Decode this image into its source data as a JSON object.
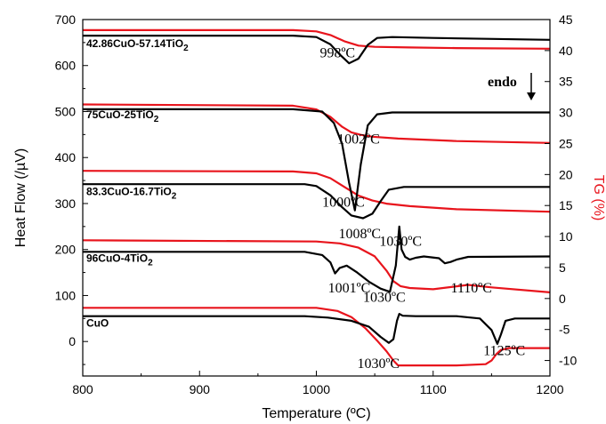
{
  "chart_data": {
    "type": "line",
    "title": "",
    "xlabel": "Temperature (ºC)",
    "ylabel_left": "Heat Flow (/µV)",
    "ylabel_right": "TG (%)",
    "xlim": [
      800,
      1200
    ],
    "ylim_left": [
      -75,
      700
    ],
    "ylim_right": [
      -12.5,
      45
    ],
    "x_ticks": [
      800,
      900,
      1000,
      1100,
      1200
    ],
    "y_left_ticks": [
      0,
      100,
      200,
      300,
      400,
      500,
      600,
      700
    ],
    "y_right_ticks": [
      -10,
      -5,
      0,
      5,
      10,
      15,
      20,
      25,
      30,
      35,
      40,
      45
    ],
    "grid": false,
    "colors": {
      "heat_flow": "#000000",
      "tg": "#e8141c"
    },
    "series_labels": [
      {
        "main": "42.86CuO-57.14TiO",
        "sub": "2",
        "x": 803,
        "y": 640
      },
      {
        "main": "75CuO-25TiO",
        "sub": "2",
        "x": 803,
        "y": 485
      },
      {
        "main": "83.3CuO-16.7TiO",
        "sub": "2",
        "x": 803,
        "y": 318
      },
      {
        "main": "96CuO-4TiO",
        "sub": "2",
        "x": 803,
        "y": 173
      },
      {
        "main": "CuO",
        "sub": "",
        "x": 803,
        "y": 32
      }
    ],
    "endo_label": "endo",
    "annotations": [
      {
        "text": "998ºC",
        "x": 1003,
        "y": 618
      },
      {
        "text": "1002ºC",
        "x": 1018,
        "y": 430
      },
      {
        "text": "1000ºC",
        "x": 1005,
        "y": 293
      },
      {
        "text": "1008ºC",
        "x": 1019,
        "y": 225
      },
      {
        "text": "1030ºC",
        "x": 1054,
        "y": 208
      },
      {
        "text": "1001ºC",
        "x": 1010,
        "y": 107
      },
      {
        "text": "1030ºC",
        "x": 1040,
        "y": 86
      },
      {
        "text": "1110ºC",
        "x": 1115,
        "y": 107
      },
      {
        "text": "1030ºC",
        "x": 1035,
        "y": -58
      },
      {
        "text": "1125ºC",
        "x": 1143,
        "y": -30
      }
    ],
    "heat_flow_series": [
      {
        "x": [
          800,
          980,
          1000,
          1012,
          1020,
          1028,
          1036,
          1044,
          1052,
          1065,
          1100,
          1200
        ],
        "y": [
          665,
          665,
          662,
          646,
          624,
          605,
          615,
          645,
          660,
          662,
          660,
          656
        ]
      },
      {
        "x": [
          800,
          980,
          1005,
          1015,
          1022,
          1028,
          1033,
          1038,
          1044,
          1052,
          1065,
          1100,
          1200
        ],
        "y": [
          505,
          505,
          500,
          475,
          430,
          345,
          285,
          385,
          470,
          494,
          498,
          498,
          498
        ]
      },
      {
        "x": [
          800,
          990,
          1000,
          1012,
          1022,
          1030,
          1040,
          1048,
          1055,
          1062,
          1075,
          1100,
          1200
        ],
        "y": [
          342,
          342,
          338,
          318,
          292,
          274,
          268,
          278,
          305,
          330,
          336,
          336,
          336
        ]
      },
      {
        "x": [
          800,
          990,
          1005,
          1012,
          1016,
          1020,
          1026,
          1035,
          1045,
          1055,
          1063,
          1068,
          1071,
          1073,
          1076,
          1080,
          1085,
          1092,
          1105,
          1110,
          1115,
          1120,
          1130,
          1200
        ],
        "y": [
          195,
          195,
          188,
          172,
          148,
          160,
          165,
          150,
          130,
          115,
          108,
          165,
          250,
          200,
          184,
          178,
          182,
          185,
          181,
          170,
          173,
          178,
          184,
          185
        ]
      },
      {
        "x": [
          800,
          990,
          1010,
          1030,
          1045,
          1055,
          1062,
          1066,
          1069,
          1071,
          1074,
          1085,
          1120,
          1140,
          1150,
          1155,
          1158,
          1162,
          1170,
          1200
        ],
        "y": [
          55,
          55,
          52,
          45,
          32,
          10,
          -3,
          5,
          45,
          60,
          56,
          55,
          55,
          50,
          25,
          -5,
          15,
          45,
          50,
          50
        ]
      }
    ],
    "tg_series": [
      {
        "x": [
          800,
          980,
          1000,
          1012,
          1024,
          1036,
          1050,
          1080,
          1120,
          1200
        ],
        "y": [
          43.3,
          43.3,
          43.1,
          42.5,
          41.5,
          40.8,
          40.6,
          40.5,
          40.4,
          40.3
        ]
      },
      {
        "x": [
          800,
          980,
          1000,
          1012,
          1022,
          1030,
          1038,
          1048,
          1070,
          1120,
          1200
        ],
        "y": [
          31.3,
          31.1,
          30.5,
          29.3,
          27.7,
          26.8,
          26.4,
          26.1,
          25.8,
          25.4,
          25.1
        ]
      },
      {
        "x": [
          800,
          980,
          1000,
          1012,
          1024,
          1036,
          1048,
          1060,
          1080,
          1120,
          1200
        ],
        "y": [
          20.6,
          20.5,
          20.2,
          19.4,
          18.0,
          16.6,
          15.8,
          15.3,
          14.9,
          14.4,
          14.0
        ]
      },
      {
        "x": [
          800,
          1000,
          1020,
          1036,
          1050,
          1060,
          1066,
          1072,
          1080,
          1100,
          1130,
          1150,
          1200
        ],
        "y": [
          9.4,
          9.2,
          8.9,
          8.2,
          6.8,
          4.5,
          2.8,
          2.0,
          1.7,
          1.5,
          2.2,
          1.8,
          1.0
        ]
      },
      {
        "x": [
          800,
          1000,
          1018,
          1030,
          1042,
          1052,
          1060,
          1066,
          1070,
          1080,
          1120,
          1145,
          1150,
          1154,
          1158,
          1165,
          1200
        ],
        "y": [
          -1.5,
          -1.5,
          -2.0,
          -3.0,
          -4.8,
          -6.8,
          -8.5,
          -10.0,
          -10.8,
          -10.8,
          -10.8,
          -10.6,
          -10.0,
          -9.0,
          -8.3,
          -8.0,
          -8.0
        ]
      }
    ]
  }
}
